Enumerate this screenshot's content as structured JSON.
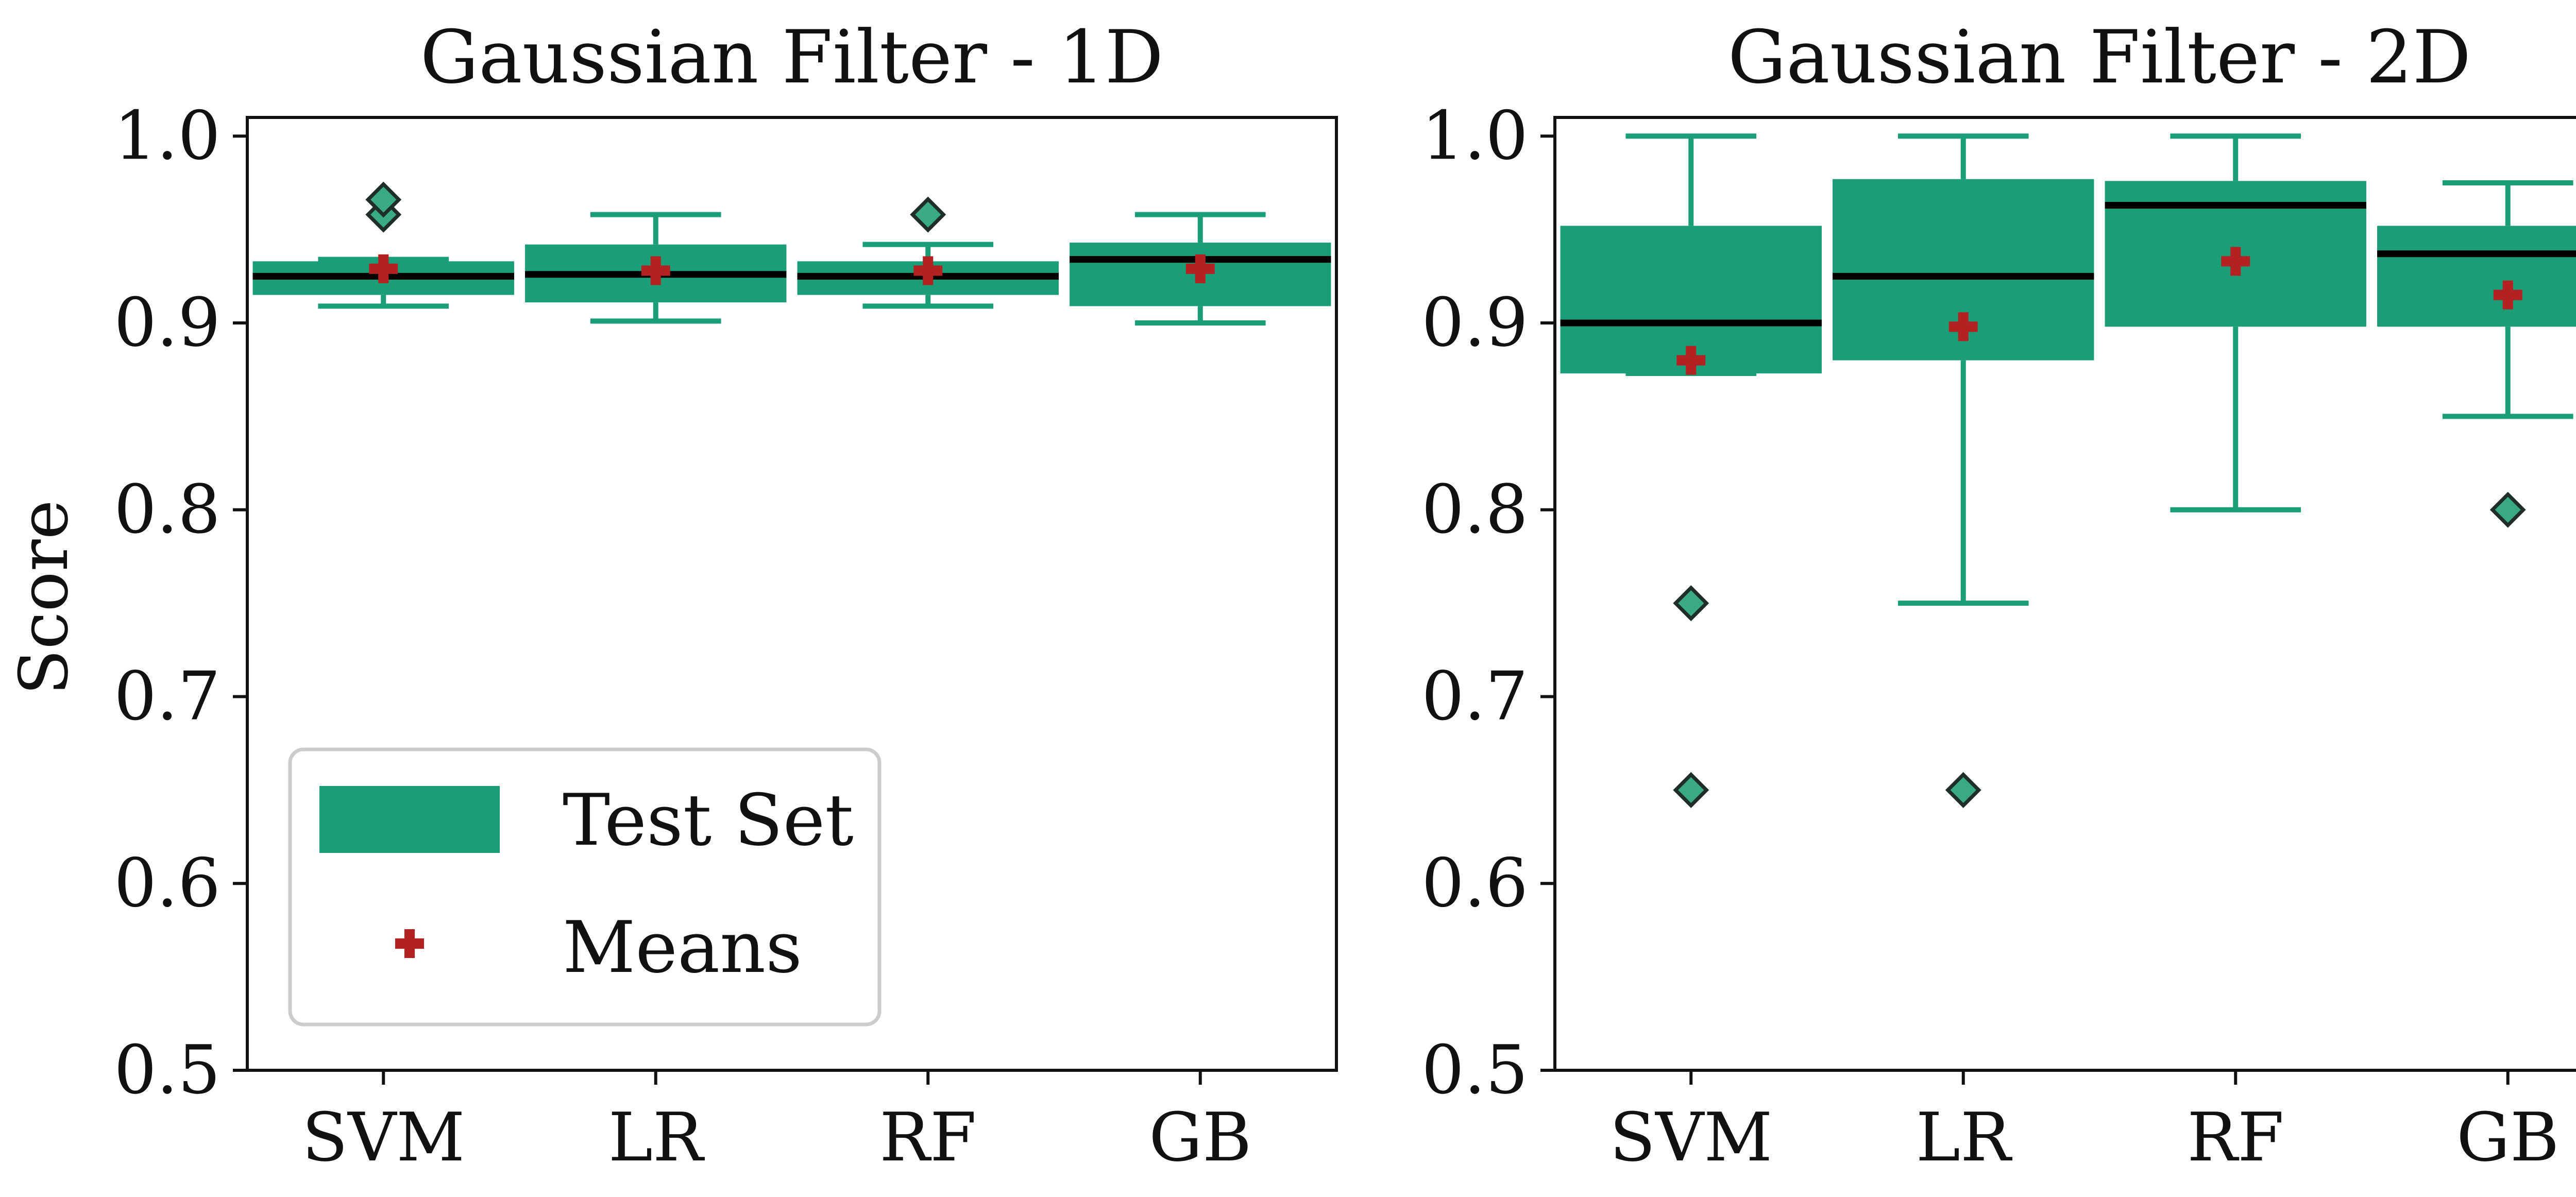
{
  "figure": {
    "ylabel": "Score"
  },
  "legend": {
    "box_label": "Test Set",
    "mean_label": "Means"
  },
  "colors": {
    "box": "#1b9e77",
    "outlier": "#3aaa86",
    "mean": "#b22222",
    "median": "#000000",
    "axis": "#111111",
    "legend_border": "#cccccc"
  },
  "chart_data": [
    {
      "type": "boxplot",
      "title": "Gaussian Filter - 1D",
      "xlabel": "",
      "ylabel": "Score",
      "categories": [
        "SVM",
        "LR",
        "RF",
        "GB"
      ],
      "ylim": [
        0.5,
        1.01
      ],
      "yticks": [
        0.5,
        0.6,
        0.7,
        0.8,
        0.9,
        1.0
      ],
      "ytick_labels": [
        "0.5",
        "0.6",
        "0.7",
        "0.8",
        "0.9",
        "1.0"
      ],
      "legend": "lower-left",
      "series": [
        {
          "name": "SVM",
          "whisker_low": 0.909,
          "q1": 0.915,
          "median": 0.925,
          "q3": 0.933,
          "whisker_high": 0.934,
          "mean": 0.929,
          "outliers": [
            0.958,
            0.966
          ]
        },
        {
          "name": "LR",
          "whisker_low": 0.901,
          "q1": 0.911,
          "median": 0.926,
          "q3": 0.942,
          "whisker_high": 0.958,
          "mean": 0.928,
          "outliers": []
        },
        {
          "name": "RF",
          "whisker_low": 0.909,
          "q1": 0.915,
          "median": 0.925,
          "q3": 0.933,
          "whisker_high": 0.942,
          "mean": 0.928,
          "outliers": [
            0.958
          ]
        },
        {
          "name": "GB",
          "whisker_low": 0.9,
          "q1": 0.909,
          "median": 0.934,
          "q3": 0.943,
          "whisker_high": 0.958,
          "mean": 0.929,
          "outliers": []
        }
      ]
    },
    {
      "type": "boxplot",
      "title": "Gaussian Filter - 2D",
      "xlabel": "",
      "ylabel": "",
      "categories": [
        "SVM",
        "LR",
        "RF",
        "GB"
      ],
      "ylim": [
        0.5,
        1.01
      ],
      "yticks": [
        0.5,
        0.6,
        0.7,
        0.8,
        0.9,
        1.0
      ],
      "ytick_labels": [
        "0.5",
        "0.6",
        "0.7",
        "0.8",
        "0.9",
        "1.0"
      ],
      "legend": "none",
      "series": [
        {
          "name": "SVM",
          "whisker_low": 0.873,
          "q1": 0.873,
          "median": 0.9,
          "q3": 0.952,
          "whisker_high": 1.0,
          "mean": 0.88,
          "outliers": [
            0.75,
            0.65
          ]
        },
        {
          "name": "LR",
          "whisker_low": 0.75,
          "q1": 0.88,
          "median": 0.925,
          "q3": 0.977,
          "whisker_high": 1.0,
          "mean": 0.898,
          "outliers": [
            0.65
          ]
        },
        {
          "name": "RF",
          "whisker_low": 0.8,
          "q1": 0.898,
          "median": 0.963,
          "q3": 0.976,
          "whisker_high": 1.0,
          "mean": 0.933,
          "outliers": []
        },
        {
          "name": "GB",
          "whisker_low": 0.85,
          "q1": 0.898,
          "median": 0.937,
          "q3": 0.952,
          "whisker_high": 0.975,
          "mean": 0.915,
          "outliers": [
            0.8
          ]
        }
      ]
    }
  ]
}
